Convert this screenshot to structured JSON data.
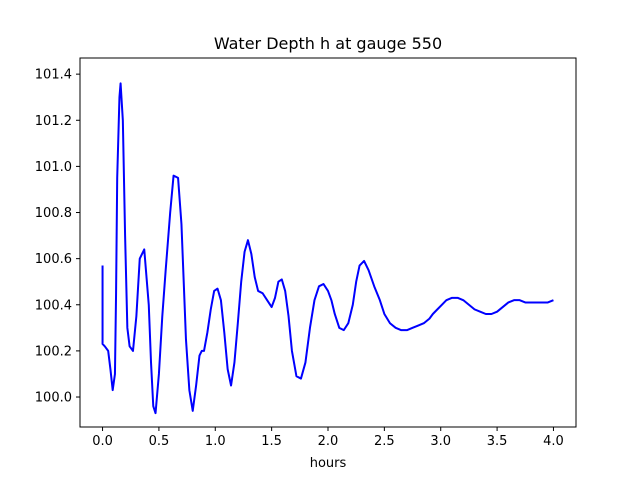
{
  "chart_data": {
    "type": "line",
    "title": "Water Depth h at gauge 550",
    "xlabel": "hours",
    "ylabel": "",
    "xlim": [
      -0.2,
      4.2
    ],
    "ylim": [
      99.87,
      101.47
    ],
    "xticks": [
      0.0,
      0.5,
      1.0,
      1.5,
      2.0,
      2.5,
      3.0,
      3.5,
      4.0
    ],
    "xtick_labels": [
      "0.0",
      "0.5",
      "1.0",
      "1.5",
      "2.0",
      "2.5",
      "3.0",
      "3.5",
      "4.0"
    ],
    "yticks": [
      100.0,
      100.2,
      100.4,
      100.6,
      100.8,
      101.0,
      101.2,
      101.4
    ],
    "ytick_labels": [
      "100.0",
      "100.2",
      "100.4",
      "100.6",
      "100.8",
      "101.0",
      "101.2",
      "101.4"
    ],
    "grid": false,
    "series": [
      {
        "color": "#0000ff",
        "x": [
          0.0,
          0.0,
          0.02,
          0.05,
          0.07,
          0.09,
          0.11,
          0.12,
          0.13,
          0.15,
          0.16,
          0.18,
          0.2,
          0.22,
          0.24,
          0.27,
          0.3,
          0.33,
          0.37,
          0.41,
          0.43,
          0.45,
          0.47,
          0.5,
          0.53,
          0.56,
          0.6,
          0.63,
          0.67,
          0.7,
          0.72,
          0.74,
          0.77,
          0.8,
          0.83,
          0.86,
          0.88,
          0.9,
          0.93,
          0.96,
          0.99,
          1.02,
          1.05,
          1.08,
          1.11,
          1.14,
          1.17,
          1.2,
          1.23,
          1.26,
          1.29,
          1.32,
          1.35,
          1.38,
          1.42,
          1.46,
          1.5,
          1.53,
          1.56,
          1.59,
          1.62,
          1.65,
          1.68,
          1.72,
          1.76,
          1.8,
          1.84,
          1.88,
          1.92,
          1.96,
          2.0,
          2.03,
          2.06,
          2.1,
          2.14,
          2.18,
          2.22,
          2.25,
          2.28,
          2.32,
          2.36,
          2.41,
          2.46,
          2.5,
          2.55,
          2.6,
          2.65,
          2.7,
          2.75,
          2.8,
          2.85,
          2.9,
          2.93,
          2.97,
          3.01,
          3.05,
          3.1,
          3.15,
          3.2,
          3.25,
          3.3,
          3.35,
          3.4,
          3.45,
          3.5,
          3.55,
          3.6,
          3.65,
          3.7,
          3.75,
          3.8,
          3.85,
          3.9,
          3.95,
          4.0
        ],
        "y": [
          100.57,
          100.23,
          100.22,
          100.2,
          100.12,
          100.03,
          100.1,
          100.45,
          100.95,
          101.3,
          101.36,
          101.2,
          100.7,
          100.3,
          100.22,
          100.2,
          100.35,
          100.6,
          100.64,
          100.4,
          100.15,
          99.96,
          99.93,
          100.1,
          100.35,
          100.55,
          100.8,
          100.96,
          100.95,
          100.75,
          100.5,
          100.25,
          100.03,
          99.94,
          100.05,
          100.18,
          100.2,
          100.2,
          100.28,
          100.38,
          100.46,
          100.47,
          100.42,
          100.28,
          100.12,
          100.05,
          100.15,
          100.32,
          100.5,
          100.63,
          100.68,
          100.62,
          100.52,
          100.46,
          100.45,
          100.42,
          100.39,
          100.43,
          100.5,
          100.51,
          100.46,
          100.35,
          100.2,
          100.09,
          100.08,
          100.15,
          100.3,
          100.42,
          100.48,
          100.49,
          100.46,
          100.42,
          100.36,
          100.3,
          100.29,
          100.32,
          100.4,
          100.5,
          100.57,
          100.59,
          100.55,
          100.48,
          100.42,
          100.36,
          100.32,
          100.3,
          100.29,
          100.29,
          100.3,
          100.31,
          100.32,
          100.34,
          100.36,
          100.38,
          100.4,
          100.42,
          100.43,
          100.43,
          100.42,
          100.4,
          100.38,
          100.37,
          100.36,
          100.36,
          100.37,
          100.39,
          100.41,
          100.42,
          100.42,
          100.41,
          100.41,
          100.41,
          100.41,
          100.41,
          100.42
        ]
      }
    ]
  }
}
